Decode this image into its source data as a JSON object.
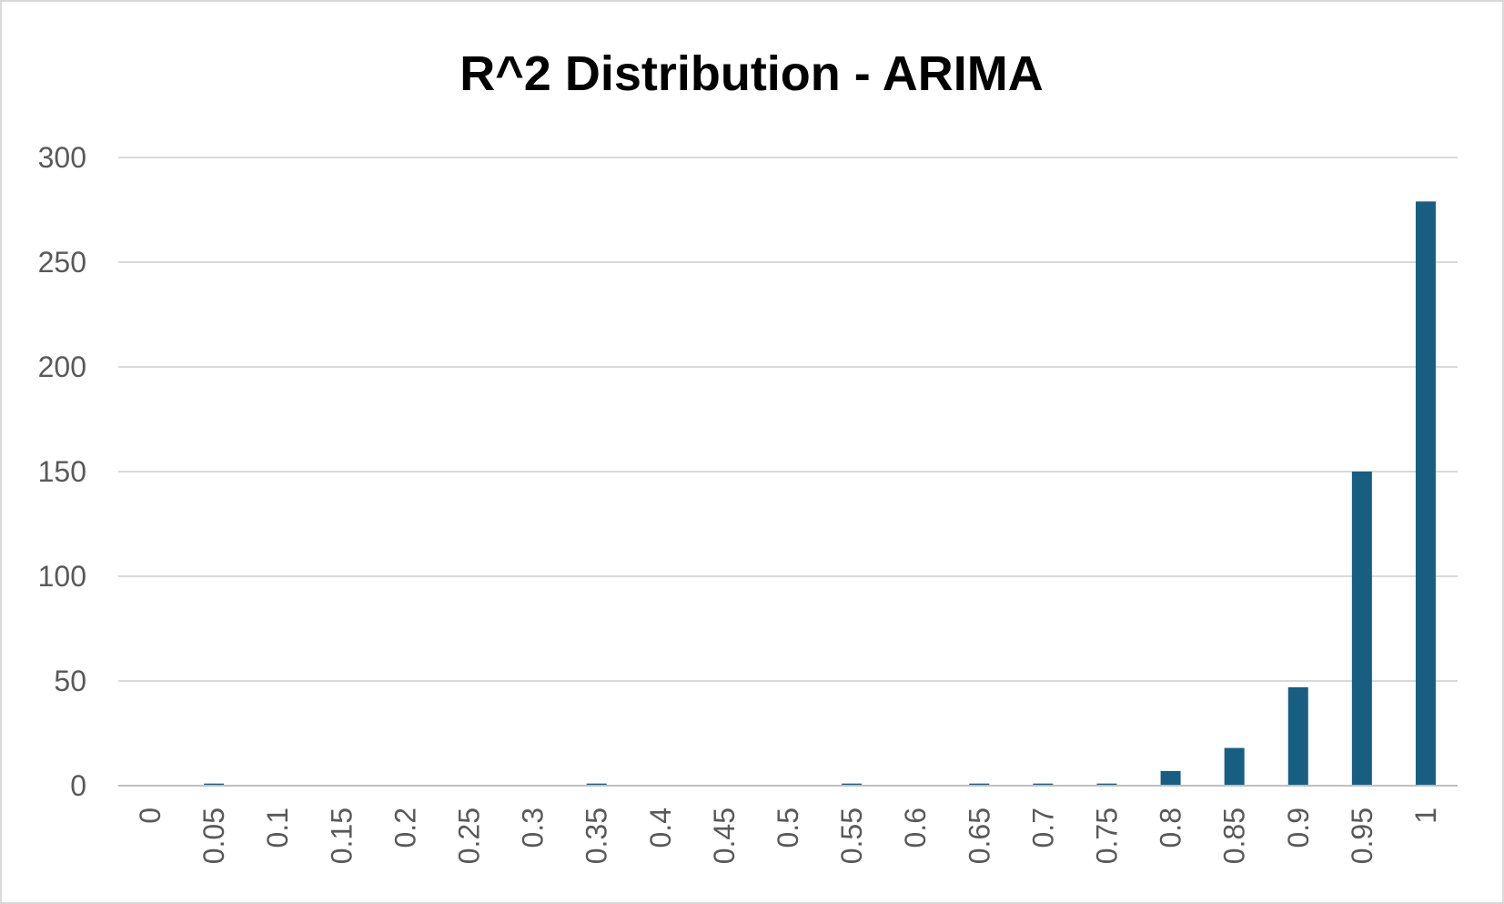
{
  "colors": {
    "bar": "#175e82",
    "grid": "#d9d9d9",
    "axis": "#bfbfbf",
    "tick_text": "#595959",
    "title_text": "#000000"
  },
  "chart_data": {
    "type": "bar",
    "title": "R^2 Distribution - ARIMA",
    "xlabel": "",
    "ylabel": "",
    "categories": [
      "0",
      "0.05",
      "0.1",
      "0.15",
      "0.2",
      "0.25",
      "0.3",
      "0.35",
      "0.4",
      "0.45",
      "0.5",
      "0.55",
      "0.6",
      "0.65",
      "0.7",
      "0.75",
      "0.8",
      "0.85",
      "0.9",
      "0.95",
      "1"
    ],
    "values": [
      0,
      1,
      0,
      0,
      0,
      0,
      0,
      1,
      0,
      0,
      0,
      1,
      0,
      1,
      1,
      1,
      7,
      18,
      47,
      150,
      279
    ],
    "ylim": [
      0,
      300
    ],
    "yticks": [
      0,
      50,
      100,
      150,
      200,
      250,
      300
    ],
    "grid": true,
    "legend": "none"
  }
}
